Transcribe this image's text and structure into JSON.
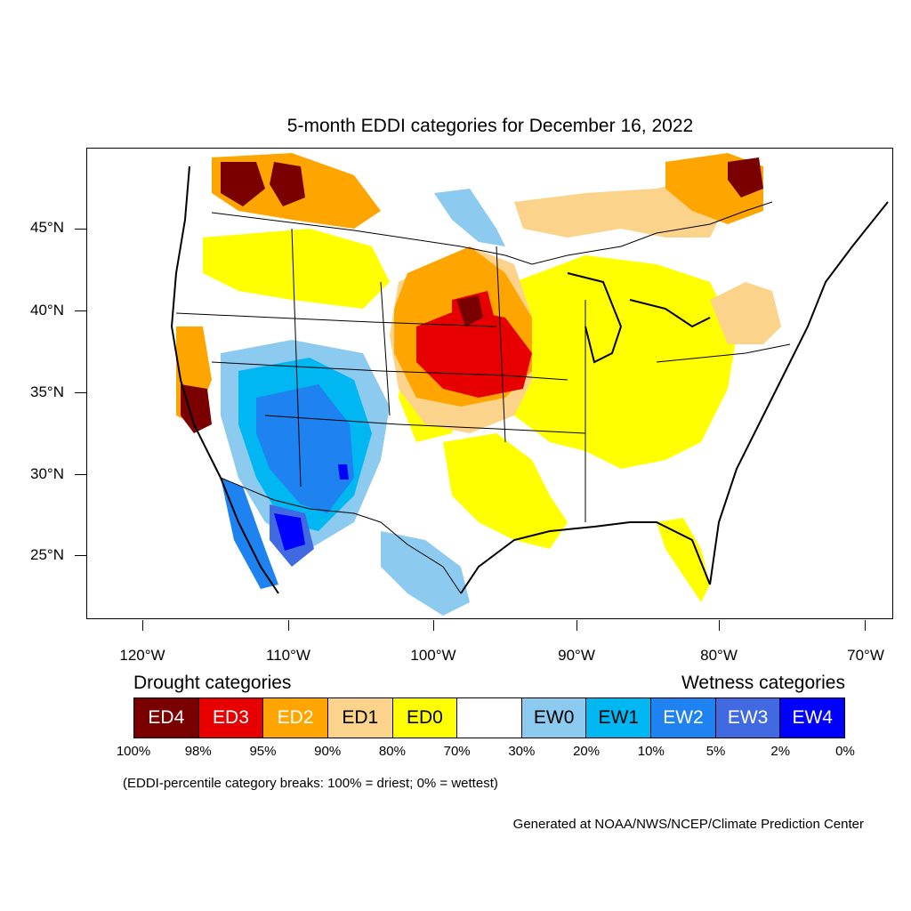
{
  "title": "5-month EDDI categories for December 16, 2022",
  "axes": {
    "lat_labels": [
      "45°N",
      "40°N",
      "35°N",
      "30°N",
      "25°N"
    ],
    "lon_labels": [
      "120°W",
      "110°W",
      "100°W",
      "90°W",
      "80°W",
      "70°W"
    ]
  },
  "legend": {
    "drought_heading": "Drought categories",
    "wetness_heading": "Wetness categories",
    "categories": [
      {
        "label": "ED4",
        "color": "#7a0000",
        "text_color": "#ffffff"
      },
      {
        "label": "ED3",
        "color": "#e60000",
        "text_color": "#ffffff"
      },
      {
        "label": "ED2",
        "color": "#ffa500",
        "text_color": "#ffffff"
      },
      {
        "label": "ED1",
        "color": "#fcd38a",
        "text_color": "#000000"
      },
      {
        "label": "ED0",
        "color": "#ffff00",
        "text_color": "#000000"
      },
      {
        "label": "",
        "color": "#ffffff",
        "text_color": "#000000"
      },
      {
        "label": "EW0",
        "color": "#8ccbef",
        "text_color": "#000000"
      },
      {
        "label": "EW1",
        "color": "#00b7f1",
        "text_color": "#000000"
      },
      {
        "label": "EW2",
        "color": "#1e82f0",
        "text_color": "#ffffff"
      },
      {
        "label": "EW3",
        "color": "#4169e1",
        "text_color": "#ffffff"
      },
      {
        "label": "EW4",
        "color": "#0000ff",
        "text_color": "#ffffff"
      }
    ],
    "percentiles": [
      "100%",
      "98%",
      "95%",
      "90%",
      "80%",
      "70%",
      "30%",
      "20%",
      "10%",
      "5%",
      "2%",
      "0%"
    ]
  },
  "note": "(EDDI-percentile category breaks: 100% = driest; 0% = wettest)",
  "credit": "Generated at NOAA/NWS/NCEP/Climate Prediction Center"
}
